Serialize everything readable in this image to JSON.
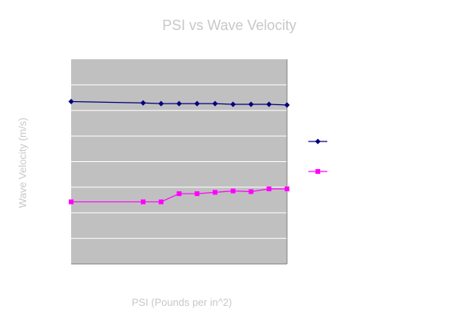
{
  "chart_data": {
    "type": "line",
    "title": "PSI vs Wave Velocity",
    "xlabel": "PSI (Pounds per in^2)",
    "ylabel": "Wave Velocity (m/s)",
    "x": [
      0,
      4,
      5,
      6,
      7,
      8,
      9,
      10,
      11,
      12
    ],
    "xlim": [
      0,
      12
    ],
    "ylim": [
      0,
      300
    ],
    "grid": true,
    "plot_background": "#c0c0c0",
    "legend_position": "right",
    "series": [
      {
        "color": "#000080",
        "marker": "diamond",
        "values": [
          238,
          236,
          235,
          235,
          235,
          235,
          234,
          234,
          234,
          233
        ]
      },
      {
        "color": "#ff00ff",
        "marker": "square",
        "values": [
          91,
          91,
          91,
          103,
          103,
          105,
          107,
          106,
          110,
          110
        ]
      }
    ]
  }
}
